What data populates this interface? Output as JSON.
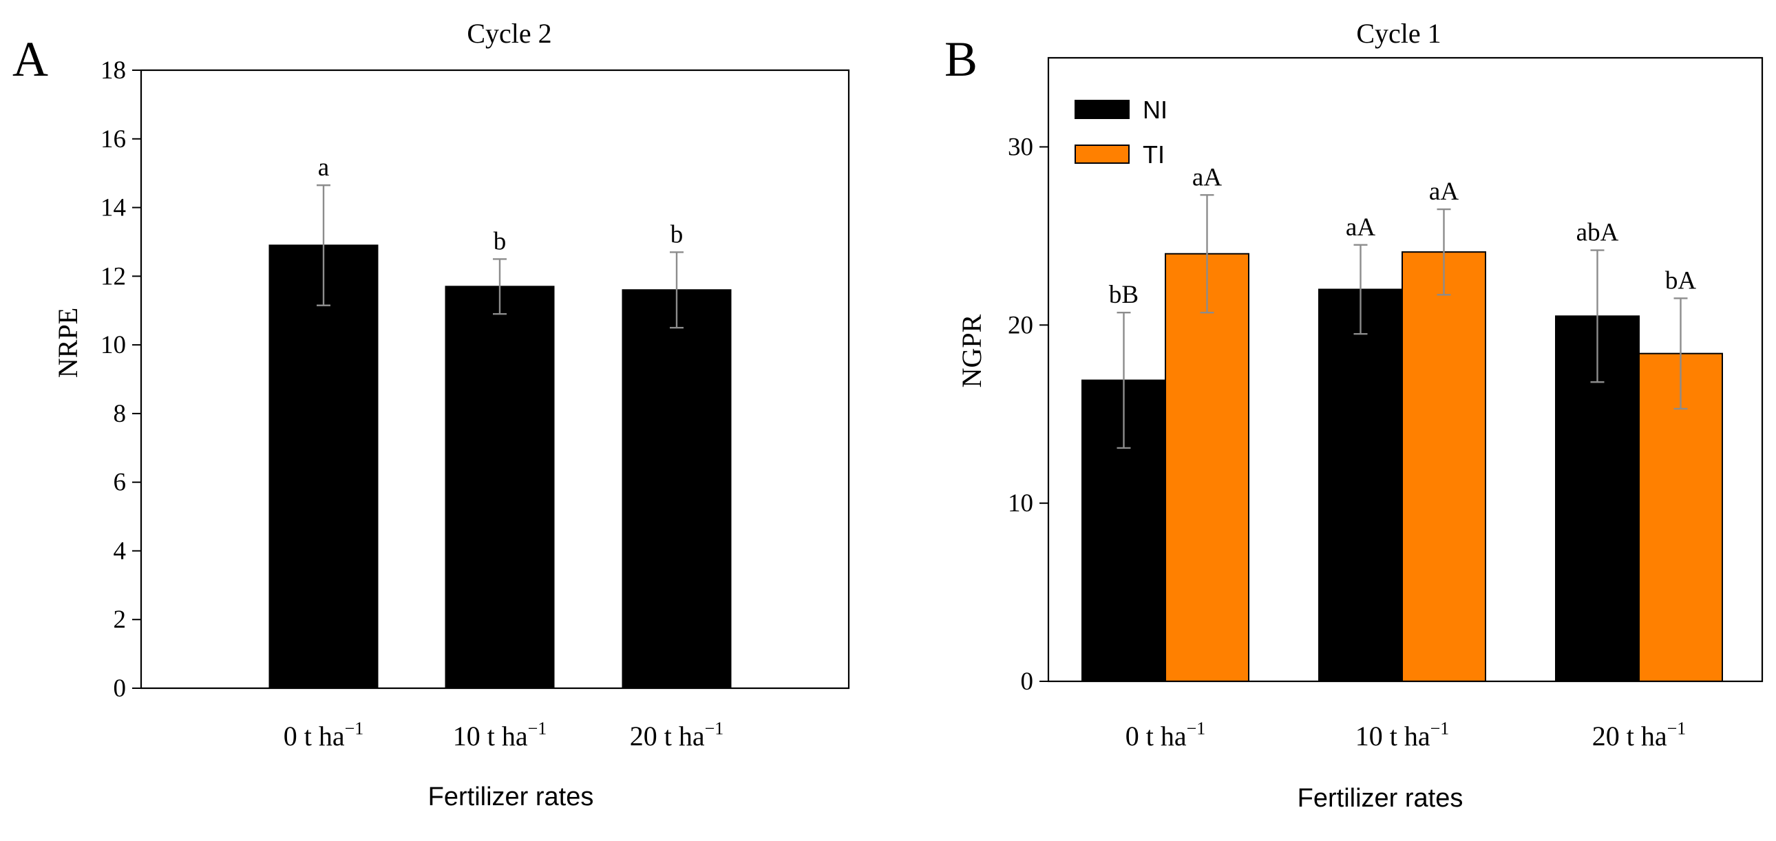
{
  "chart_data": [
    {
      "type": "bar",
      "panel": "A",
      "title": "Cycle 2",
      "xlabel": "Fertilizer rates",
      "ylabel": "NRPE",
      "ylim": [
        0,
        18
      ],
      "yticks": [
        "0",
        "2",
        "4",
        "6",
        "8",
        "10",
        "12",
        "14",
        "16",
        "18"
      ],
      "categories": [
        {
          "main": "0 t ha",
          "sup": "−1"
        },
        {
          "main": "10 t ha",
          "sup": "−1"
        },
        {
          "main": "20 t ha",
          "sup": "−1"
        }
      ],
      "series": [
        {
          "name": "",
          "color": "#000000",
          "values": [
            12.9,
            11.7,
            11.6
          ],
          "errors": [
            1.75,
            0.8,
            1.1
          ],
          "labels": [
            "a",
            "b",
            "b"
          ]
        }
      ]
    },
    {
      "type": "bar",
      "panel": "B",
      "title": "Cycle 1",
      "xlabel": "Fertilizer rates",
      "ylabel": "NGPR",
      "ylim": [
        0,
        35
      ],
      "yticks": [
        "0",
        "10",
        "20",
        "30"
      ],
      "categories": [
        {
          "main": "0 t ha",
          "sup": "−1"
        },
        {
          "main": "10 t ha",
          "sup": "−1"
        },
        {
          "main": "20 t ha",
          "sup": "−1"
        }
      ],
      "legend": "top-left",
      "series": [
        {
          "name": "NI",
          "color": "#000000",
          "values": [
            16.9,
            22.0,
            20.5
          ],
          "errors": [
            3.8,
            2.5,
            3.7
          ],
          "labels": [
            "bB",
            "aA",
            "abA"
          ]
        },
        {
          "name": "TI",
          "color": "#ff8000",
          "values": [
            24.0,
            24.1,
            18.4
          ],
          "errors": [
            3.3,
            2.4,
            3.1
          ],
          "labels": [
            "aA",
            "aA",
            "bA"
          ]
        }
      ]
    }
  ]
}
